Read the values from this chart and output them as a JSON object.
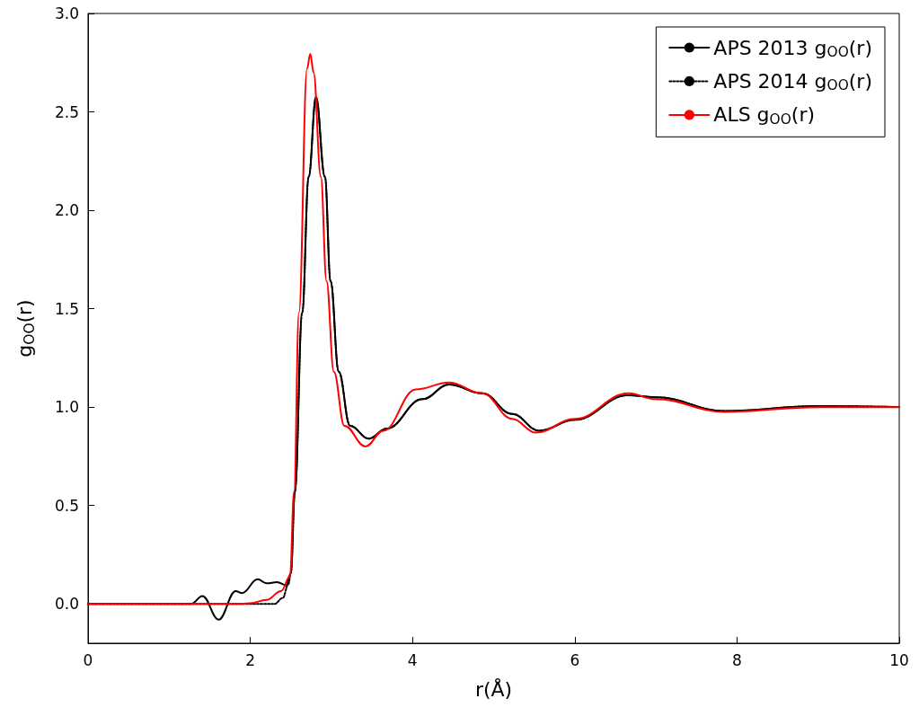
{
  "chart_data": {
    "type": "line",
    "xlabel": "r(Å)",
    "ylabel": "g$_{OO}$(r)",
    "xlim": [
      0,
      10
    ],
    "xticks": [
      0,
      2,
      4,
      6,
      8,
      10
    ],
    "ylim": [
      -0.2,
      3
    ],
    "yticks": [
      {
        "value": 0,
        "label": "0.0"
      },
      {
        "value": 0.5,
        "label": "0.5"
      },
      {
        "value": 1,
        "label": "1.0"
      },
      {
        "value": 1.5,
        "label": "1.5"
      },
      {
        "value": 2,
        "label": "2.0"
      },
      {
        "value": 2.5,
        "label": "2.5"
      },
      {
        "value": 3,
        "label": "3.0"
      }
    ],
    "legend": "top right",
    "marker": "none",
    "grid": false,
    "series": [
      {
        "name": "APS 2013 g$_{OO}$(r)",
        "color": "#000000",
        "line_style": "solid",
        "x": [
          0,
          1.1,
          1.27,
          1.41,
          1.61,
          1.82,
          1.9,
          2.09,
          2.2,
          2.33,
          2.44,
          2.5,
          2.55,
          2.64,
          2.72,
          2.81,
          2.92,
          2.99,
          3.09,
          3.23,
          3.46,
          3.68,
          4.12,
          4.45,
          4.86,
          5.23,
          5.56,
          6.0,
          6.65,
          7.0,
          7.85,
          9.0,
          10
        ],
        "values": [
          0,
          0,
          0,
          0.04,
          -0.08,
          0.065,
          0.055,
          0.125,
          0.105,
          0.11,
          0.095,
          0.155,
          0.57,
          1.48,
          2.17,
          2.575,
          2.17,
          1.64,
          1.18,
          0.905,
          0.84,
          0.89,
          1.04,
          1.115,
          1.07,
          0.965,
          0.88,
          0.935,
          1.06,
          1.05,
          0.98,
          1.005,
          1
        ]
      },
      {
        "name": "APS 2014 g$_{OO}$(r)",
        "color": "#000000",
        "line_style": "dotted",
        "x": [
          0,
          2.3,
          2.4,
          2.47,
          2.5,
          2.55,
          2.64,
          2.72,
          2.81,
          2.92,
          2.99,
          3.09,
          3.23,
          3.46,
          3.68,
          4.12,
          4.45,
          4.86,
          5.23,
          5.56,
          6.0,
          6.65,
          7.0,
          7.85,
          9.0,
          10
        ],
        "values": [
          0,
          0,
          0.03,
          0.1,
          0.155,
          0.57,
          1.48,
          2.17,
          2.575,
          2.17,
          1.64,
          1.18,
          0.905,
          0.84,
          0.89,
          1.04,
          1.115,
          1.07,
          0.965,
          0.88,
          0.935,
          1.06,
          1.05,
          0.98,
          1.005,
          1
        ]
      },
      {
        "name": "ALS g$_{OO}$(r)",
        "color": "#ff0000",
        "line_style": "solid",
        "x": [
          0,
          1.9,
          2.0,
          2.2,
          2.38,
          2.49,
          2.54,
          2.6,
          2.7,
          2.74,
          2.78,
          2.87,
          2.94,
          3.03,
          3.16,
          3.42,
          3.64,
          4.04,
          4.45,
          4.86,
          5.23,
          5.52,
          6.0,
          6.66,
          7.0,
          7.85,
          9.0,
          10
        ],
        "values": [
          0,
          0,
          0.003,
          0.02,
          0.065,
          0.14,
          0.57,
          1.48,
          2.72,
          2.795,
          2.7,
          2.17,
          1.64,
          1.18,
          0.905,
          0.8,
          0.88,
          1.09,
          1.125,
          1.07,
          0.94,
          0.87,
          0.94,
          1.07,
          1.04,
          0.975,
          1.0,
          1
        ]
      }
    ]
  }
}
